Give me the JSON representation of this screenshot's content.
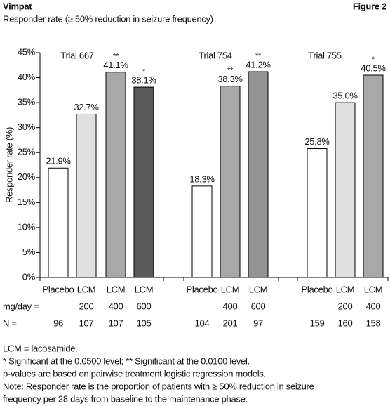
{
  "header": {
    "title": "Vimpat",
    "figure": "Figure 2",
    "subtitle": "Responder rate (≥ 50% reduction in seizure frequency)"
  },
  "chart_data": {
    "type": "bar",
    "y_label": "Responder rate (%)",
    "ylim": [
      0,
      45
    ],
    "yticks": [
      {
        "value": 0,
        "label": "0%"
      },
      {
        "value": 5,
        "label": "5%"
      },
      {
        "value": 10,
        "label": "10%"
      },
      {
        "value": 15,
        "label": "15%"
      },
      {
        "value": 20,
        "label": "20%"
      },
      {
        "value": 25,
        "label": "25%"
      },
      {
        "value": 30,
        "label": "30%"
      },
      {
        "value": 35,
        "label": "35%"
      },
      {
        "value": 40,
        "label": "40%"
      },
      {
        "value": 45,
        "label": "45%"
      }
    ],
    "dose_label": "mg/day =",
    "n_label": "N =",
    "groups": [
      {
        "name": "Trial 667",
        "categories": [
          "Placebo",
          "LCM",
          "LCM",
          "LCM"
        ],
        "dose": [
          null,
          "200",
          "400",
          "600"
        ],
        "n": [
          "96",
          "107",
          "107",
          "105"
        ],
        "values": [
          21.9,
          32.7,
          41.1,
          38.1
        ],
        "value_labels": [
          "21.9%",
          "32.7%",
          "41.1%",
          "38.1%"
        ],
        "significance": [
          null,
          null,
          "**",
          "*"
        ],
        "colors": [
          "#ffffff",
          "#e0e0e0",
          "#a8a8a8",
          "#5a5a5a"
        ]
      },
      {
        "name": "Trial 754",
        "categories": [
          "Placebo",
          "LCM",
          "LCM"
        ],
        "dose": [
          null,
          "400",
          "600"
        ],
        "n": [
          "104",
          "201",
          "97"
        ],
        "values": [
          18.3,
          38.3,
          41.2
        ],
        "value_labels": [
          "18.3%",
          "38.3%",
          "41.2%"
        ],
        "significance": [
          null,
          "**",
          "**"
        ],
        "colors": [
          "#ffffff",
          "#a8a8a8",
          "#939393"
        ]
      },
      {
        "name": "Trial 755",
        "categories": [
          "Placebo",
          "LCM",
          "LCM"
        ],
        "dose": [
          null,
          "200",
          "400"
        ],
        "n": [
          "159",
          "160",
          "158"
        ],
        "values": [
          25.8,
          35.0,
          40.5
        ],
        "value_labels": [
          "25.8%",
          "35.0%",
          "40.5%"
        ],
        "significance": [
          null,
          null,
          "*"
        ],
        "colors": [
          "#ffffff",
          "#e0e0e0",
          "#a8a8a8"
        ]
      }
    ]
  },
  "footnotes": [
    "LCM = lacosamide.",
    "* Significant at the 0.0500 level;  ** Significant at the 0.0100 level.",
    "p-values are based on pairwise treatment logistic regression models.",
    "Note: Responder rate is the proportion of patients with ≥ 50% reduction in seizure",
    "frequency per 28 days from baseline to the maintenance phase."
  ]
}
